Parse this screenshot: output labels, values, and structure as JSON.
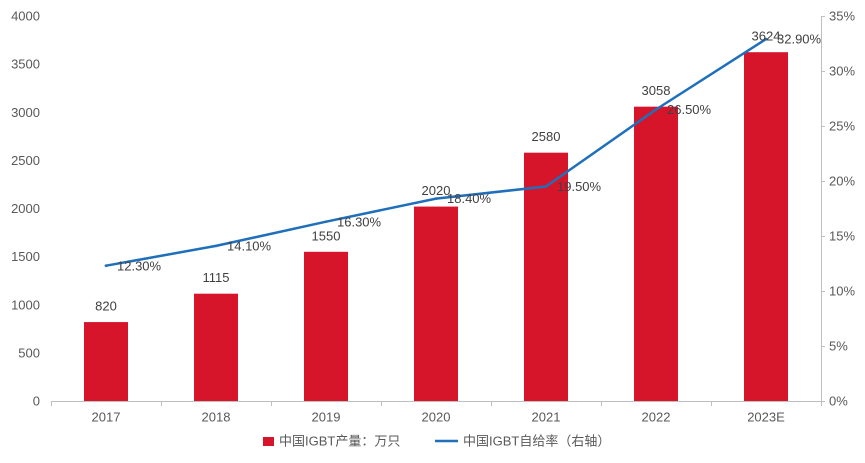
{
  "chart_data": {
    "type": "bar",
    "title": "",
    "xlabel": "",
    "ylabel": "",
    "categories": [
      "2017",
      "2018",
      "2019",
      "2020",
      "2021",
      "2022",
      "2023E"
    ],
    "series": [
      {
        "name": "中国IGBT产量：万只",
        "type": "bar",
        "color": "#D7152A",
        "values": [
          820,
          1115,
          1550,
          2020,
          2580,
          3058,
          3624
        ],
        "data_labels": [
          "820",
          "1115",
          "1550",
          "2020",
          "2580",
          "3058",
          "3624"
        ]
      },
      {
        "name": "中国IGBT自给率（右轴）",
        "type": "line",
        "color": "#1F6FBA",
        "values": [
          12.3,
          14.1,
          16.3,
          18.4,
          19.5,
          26.5,
          32.9
        ],
        "data_labels": [
          "12.30%",
          "14.10%",
          "16.30%",
          "18.40%",
          "19.50%",
          "26.50%",
          "32.90%"
        ]
      }
    ],
    "y_left": {
      "min": 0,
      "max": 4000,
      "tick_labels": [
        "0",
        "500",
        "1000",
        "1500",
        "2000",
        "2500",
        "3000",
        "3500",
        "4000"
      ]
    },
    "y_right": {
      "min": 0,
      "max": 35,
      "tick_labels": [
        "0%",
        "5%",
        "10%",
        "15%",
        "20%",
        "25%",
        "30%",
        "35%"
      ]
    },
    "grid": false,
    "legend": {
      "position": "bottom"
    }
  }
}
